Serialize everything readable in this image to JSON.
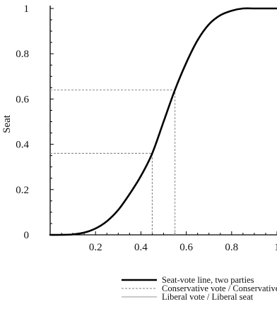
{
  "chart_data": {
    "type": "line",
    "title": "",
    "xlabel": "",
    "ylabel": "Seat",
    "xlim": [
      0,
      1
    ],
    "ylim": [
      0,
      1
    ],
    "x_ticks": [
      0.2,
      0.4,
      0.6,
      0.8,
      1
    ],
    "x_tick_labels": [
      "0.2",
      "0.4",
      "0.6",
      "0.8",
      "1"
    ],
    "y_ticks": [
      0,
      0.2,
      0.4,
      0.6,
      0.8,
      1
    ],
    "y_tick_labels": [
      "0",
      "0.2",
      "0.4",
      "0.6",
      "0.8",
      "1"
    ],
    "grid": false,
    "legend_position": "bottom-right",
    "series": [
      {
        "name": "Seat-vote line, two parties",
        "style": "solid-thick",
        "color": "#000000",
        "x": [
          0,
          0.05,
          0.1,
          0.15,
          0.2,
          0.25,
          0.3,
          0.35,
          0.4,
          0.45,
          0.5,
          0.55,
          0.6,
          0.65,
          0.7,
          0.75,
          0.8,
          0.85,
          0.9,
          0.95,
          1
        ],
        "y": [
          0,
          0.0,
          0.002,
          0.01,
          0.028,
          0.06,
          0.11,
          0.18,
          0.26,
          0.36,
          0.5,
          0.64,
          0.76,
          0.86,
          0.93,
          0.97,
          0.99,
          1.0,
          1.0,
          1.0,
          1.0
        ]
      },
      {
        "name": "Conservative vote / Conservative seat",
        "style": "dashed",
        "color": "#999999",
        "x": [
          0,
          0.55,
          0.55
        ],
        "y": [
          0.64,
          0.64,
          0
        ]
      },
      {
        "name": "Liberal vote / Liberal seat",
        "style": "thin-solid",
        "color": "#aaaaaa",
        "x": [
          0,
          0.45,
          0.45
        ],
        "y": [
          0.36,
          0.36,
          0
        ]
      }
    ]
  }
}
